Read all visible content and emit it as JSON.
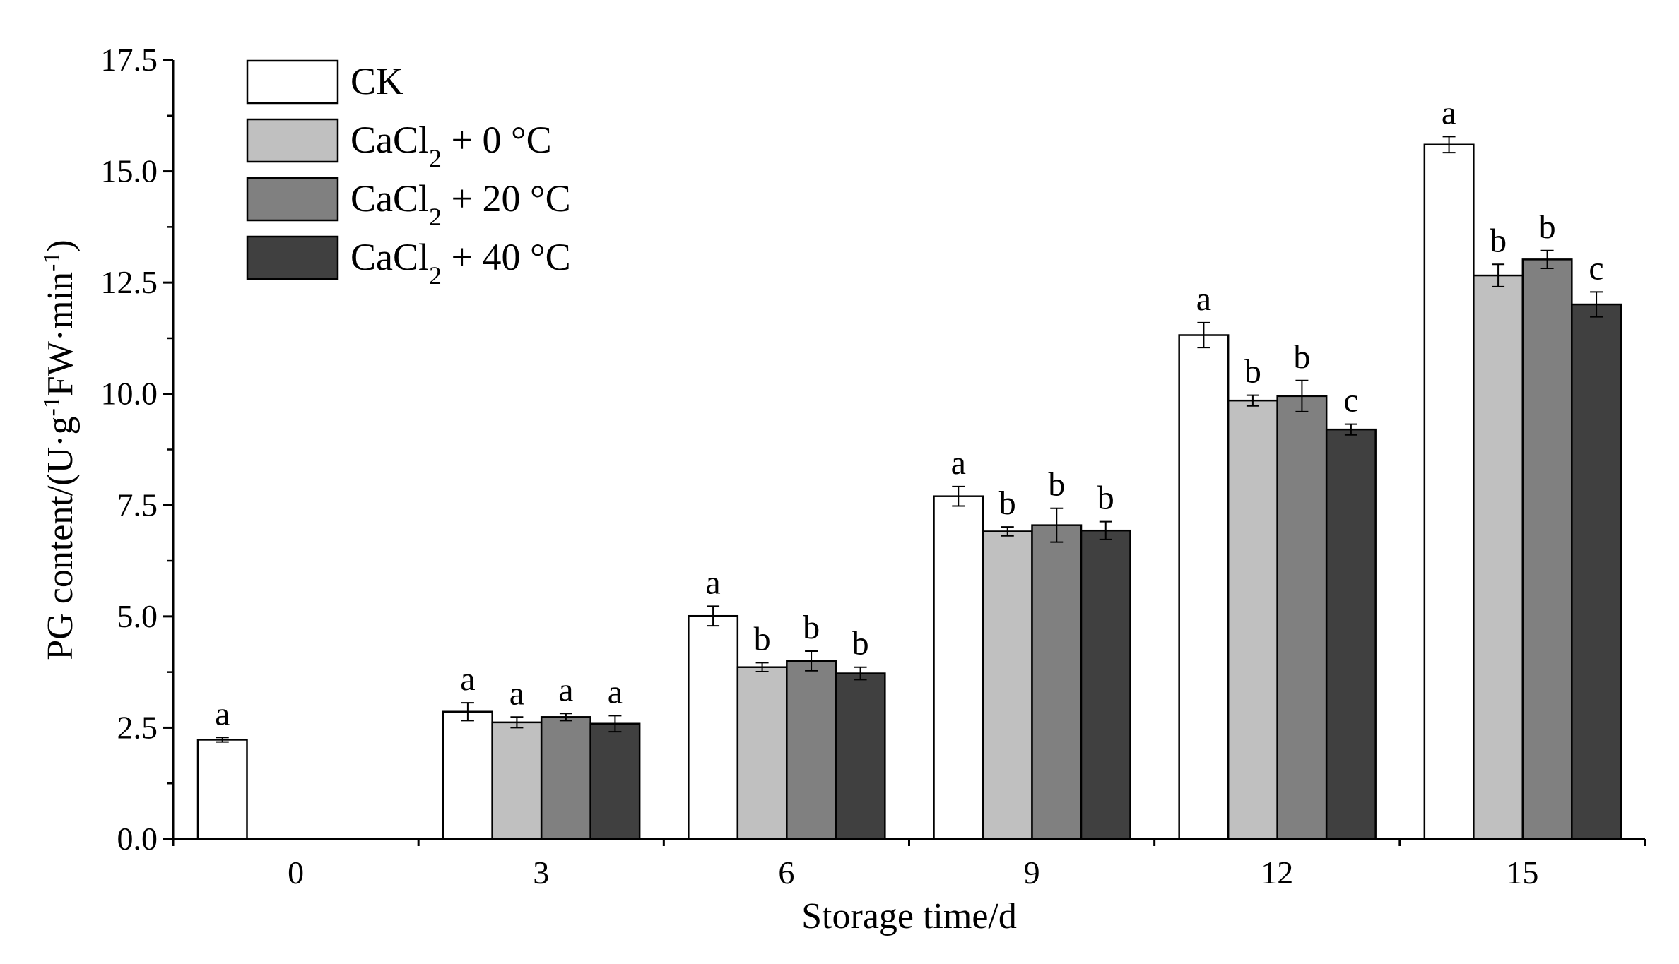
{
  "chart_data": {
    "type": "bar",
    "title": "",
    "xlabel": "Storage time/d",
    "ylabel": {
      "prefix": "PG content/(U·g",
      "sup1": "-1",
      "mid": "FW·min",
      "sup2": "-1",
      "suffix": ")"
    },
    "ylim": [
      0,
      17.5
    ],
    "yticks": [
      "0.0",
      "2.5",
      "5.0",
      "7.5",
      "10.0",
      "12.5",
      "15.0",
      "17.5"
    ],
    "categories": [
      "0",
      "3",
      "6",
      "9",
      "12",
      "15"
    ],
    "series": [
      {
        "name": "CK",
        "legend": {
          "base": "CK",
          "sub": "",
          "suffix": ""
        },
        "color": "#ffffff",
        "values": [
          2.23,
          2.86,
          5.01,
          7.7,
          11.32,
          15.6
        ],
        "errors": [
          0.05,
          0.2,
          0.22,
          0.22,
          0.28,
          0.18
        ],
        "labels": [
          "a",
          "a",
          "a",
          "a",
          "a",
          "a"
        ]
      },
      {
        "name": "CaCl2 + 0 °C",
        "legend": {
          "base": "CaCl",
          "sub": "2",
          "suffix": " + 0 °C"
        },
        "color": "#c0c0c0",
        "values": [
          null,
          2.62,
          3.86,
          6.91,
          9.85,
          12.66
        ],
        "errors": [
          null,
          0.12,
          0.1,
          0.1,
          0.12,
          0.25
        ],
        "labels": [
          "",
          "a",
          "b",
          "b",
          "b",
          "b"
        ]
      },
      {
        "name": "CaCl2 + 20 °C",
        "legend": {
          "base": "CaCl",
          "sub": "2",
          "suffix": " + 20 °C"
        },
        "color": "#808080",
        "values": [
          null,
          2.74,
          4.0,
          7.05,
          9.95,
          13.02
        ],
        "errors": [
          null,
          0.08,
          0.22,
          0.38,
          0.35,
          0.2
        ],
        "labels": [
          "",
          "a",
          "b",
          "b",
          "b",
          "b"
        ]
      },
      {
        "name": "CaCl2 + 40 °C",
        "legend": {
          "base": "CaCl",
          "sub": "2",
          "suffix": " + 40 °C"
        },
        "color": "#404040",
        "values": [
          null,
          2.59,
          3.72,
          6.93,
          9.2,
          12.01
        ],
        "errors": [
          null,
          0.18,
          0.14,
          0.2,
          0.12,
          0.28
        ],
        "labels": [
          "",
          "a",
          "b",
          "b",
          "c",
          "c"
        ]
      }
    ],
    "legend_position": "top-left",
    "grid": false
  }
}
